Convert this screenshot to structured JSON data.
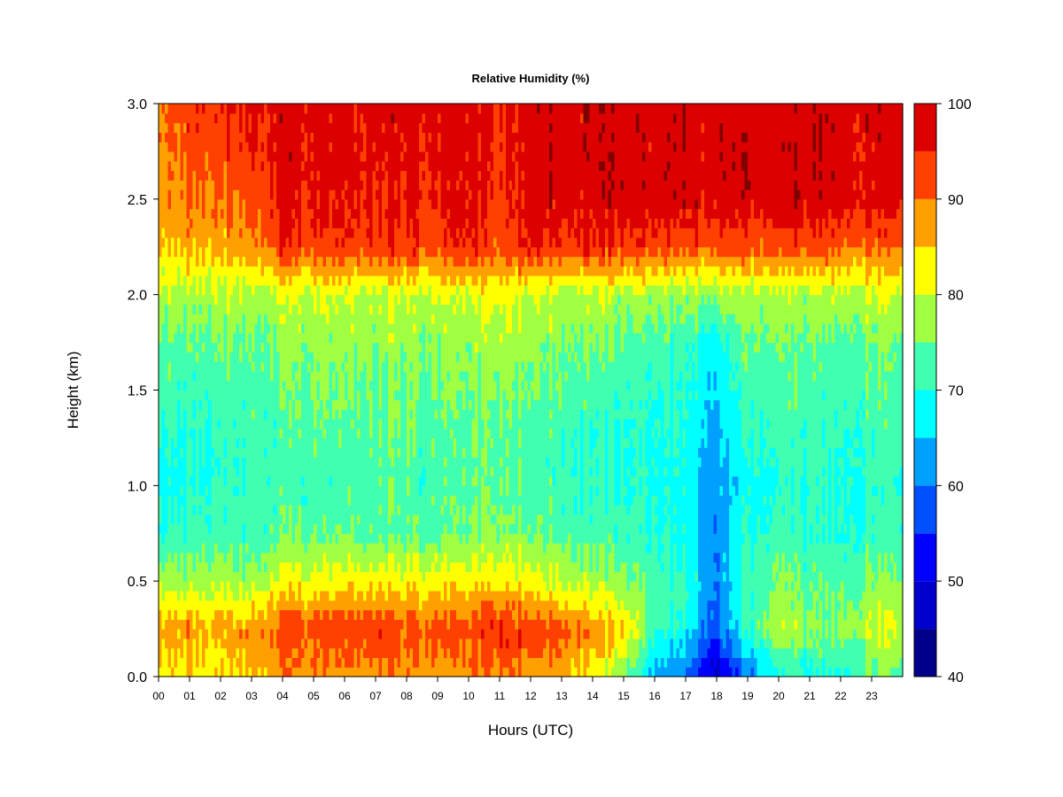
{
  "chart_data": {
    "type": "heatmap",
    "title": "Relative Humidity (%)",
    "xlabel": "Hours (UTC)",
    "ylabel": "Height (km)",
    "x_ticks": [
      "00",
      "01",
      "02",
      "03",
      "04",
      "05",
      "06",
      "07",
      "08",
      "09",
      "10",
      "11",
      "12",
      "13",
      "14",
      "15",
      "16",
      "17",
      "18",
      "19",
      "20",
      "21",
      "22",
      "23"
    ],
    "xlim": [
      0,
      24
    ],
    "y_ticks": [
      "0.0",
      "0.5",
      "1.0",
      "1.5",
      "2.0",
      "2.5",
      "3.0"
    ],
    "ylim": [
      0,
      3.0
    ],
    "colorbar": {
      "levels": [
        40,
        45,
        50,
        55,
        60,
        65,
        70,
        75,
        80,
        85,
        90,
        95,
        100
      ],
      "tick_labels": [
        "40",
        "50",
        "60",
        "70",
        "80",
        "90",
        "100"
      ],
      "colors": [
        "#00008b",
        "#0000cd",
        "#0000ff",
        "#0050ff",
        "#00a0ff",
        "#00ffff",
        "#40ffb0",
        "#a0ff40",
        "#ffff00",
        "#ffa000",
        "#ff4000",
        "#dd0000",
        "#800000"
      ]
    },
    "heights_km": [
      0.0,
      0.25,
      0.5,
      0.75,
      1.0,
      1.25,
      1.5,
      1.75,
      2.0,
      2.25,
      2.5,
      2.75,
      3.0
    ],
    "hours_utc": [
      0,
      1,
      2,
      3,
      4,
      5,
      6,
      7,
      8,
      9,
      10,
      11,
      12,
      13,
      14,
      15,
      16,
      17,
      18,
      19,
      20,
      21,
      22,
      23,
      24
    ],
    "rh_percent_by_hour": [
      [
        83,
        88,
        78,
        70,
        68,
        70,
        73,
        74,
        78,
        85,
        88,
        88,
        90
      ],
      [
        84,
        88,
        78,
        72,
        70,
        70,
        72,
        74,
        78,
        87,
        90,
        92,
        94
      ],
      [
        82,
        86,
        78,
        72,
        70,
        70,
        72,
        75,
        78,
        86,
        90,
        92,
        94
      ],
      [
        85,
        89,
        77,
        72,
        72,
        72,
        73,
        74,
        78,
        88,
        92,
        94,
        96
      ],
      [
        88,
        92,
        82,
        74,
        72,
        72,
        74,
        76,
        80,
        94,
        96,
        97,
        97
      ],
      [
        88,
        93,
        82,
        74,
        72,
        74,
        75,
        77,
        80,
        93,
        96,
        97,
        97
      ],
      [
        88,
        93,
        83,
        74,
        73,
        74,
        75,
        77,
        80,
        94,
        96,
        97,
        97
      ],
      [
        88,
        94,
        84,
        74,
        73,
        74,
        75,
        77,
        80,
        94,
        96,
        97,
        97
      ],
      [
        88,
        93,
        82,
        74,
        73,
        74,
        75,
        77,
        80,
        94,
        96,
        97,
        97
      ],
      [
        87,
        92,
        82,
        74,
        72,
        73,
        74,
        76,
        79,
        92,
        95,
        96,
        96
      ],
      [
        88,
        93,
        83,
        75,
        74,
        74,
        75,
        77,
        80,
        95,
        97,
        97,
        97
      ],
      [
        89,
        95,
        84,
        76,
        74,
        74,
        76,
        78,
        82,
        91,
        93,
        94,
        95
      ],
      [
        88,
        94,
        82,
        75,
        73,
        73,
        75,
        77,
        80,
        96,
        98,
        98,
        98
      ],
      [
        86,
        92,
        80,
        74,
        72,
        72,
        74,
        76,
        79,
        94,
        98,
        98,
        98
      ],
      [
        82,
        88,
        78,
        72,
        70,
        70,
        72,
        75,
        79,
        94,
        98,
        98,
        98
      ],
      [
        76,
        86,
        76,
        72,
        70,
        70,
        72,
        74,
        78,
        94,
        98,
        98,
        98
      ],
      [
        64,
        72,
        73,
        70,
        70,
        70,
        71,
        73,
        78,
        93,
        98,
        98,
        98
      ],
      [
        60,
        68,
        71,
        69,
        68,
        69,
        70,
        72,
        77,
        92,
        98,
        98,
        98
      ],
      [
        46,
        58,
        60,
        61,
        62,
        63,
        65,
        68,
        76,
        92,
        98,
        98,
        98
      ],
      [
        60,
        70,
        72,
        70,
        68,
        70,
        72,
        74,
        78,
        92,
        98,
        98,
        98
      ],
      [
        70,
        80,
        76,
        72,
        70,
        72,
        73,
        75,
        79,
        92,
        98,
        98,
        98
      ],
      [
        68,
        76,
        73,
        70,
        70,
        71,
        72,
        74,
        78,
        92,
        98,
        98,
        98
      ],
      [
        70,
        76,
        74,
        70,
        70,
        71,
        72,
        74,
        79,
        92,
        98,
        98,
        98
      ],
      [
        74,
        80,
        76,
        72,
        71,
        72,
        73,
        75,
        80,
        91,
        97,
        97,
        98
      ],
      [
        74,
        80,
        76,
        72,
        71,
        72,
        73,
        75,
        80,
        91,
        97,
        97,
        98
      ]
    ]
  }
}
